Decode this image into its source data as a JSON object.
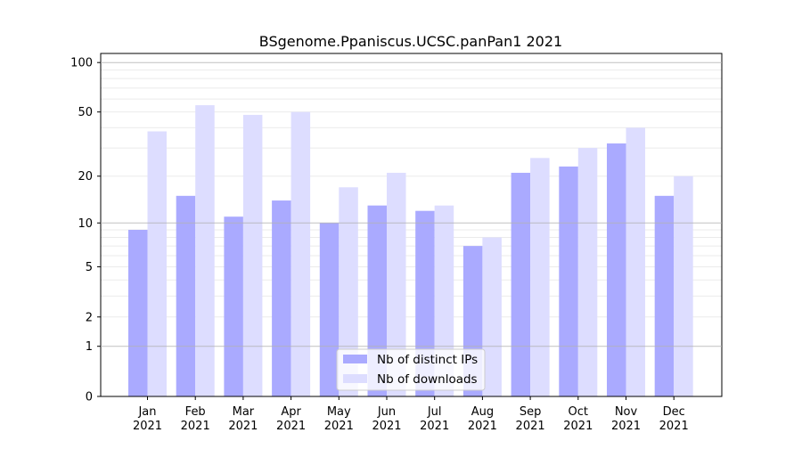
{
  "chart_data": {
    "type": "bar",
    "title": "BSgenome.Ppaniscus.UCSC.panPan1 2021",
    "xlabel": "",
    "ylabel": "",
    "yscale": "log(1+x)",
    "ylim": [
      0,
      120
    ],
    "grid": true,
    "legend_position": "bottom-center",
    "categories": [
      "Jan\n2021",
      "Feb\n2021",
      "Mar\n2021",
      "Apr\n2021",
      "May\n2021",
      "Jun\n2021",
      "Jul\n2021",
      "Aug\n2021",
      "Sep\n2021",
      "Oct\n2021",
      "Nov\n2021",
      "Dec\n2021"
    ],
    "ytick_values": [
      0,
      1,
      2,
      5,
      10,
      20,
      50,
      100
    ],
    "ytick_labels": [
      "0",
      "1",
      "2",
      "5",
      "10",
      "20",
      "50",
      "100"
    ],
    "series": [
      {
        "name": "Nb of distinct IPs",
        "color": "#aaaaff",
        "values": [
          9,
          15,
          11,
          14,
          10,
          13,
          12,
          7,
          21,
          23,
          32,
          15
        ]
      },
      {
        "name": "Nb of downloads",
        "color": "#ddddff",
        "values": [
          38,
          55,
          48,
          50,
          17,
          21,
          13,
          8,
          26,
          30,
          40,
          20
        ]
      }
    ]
  }
}
